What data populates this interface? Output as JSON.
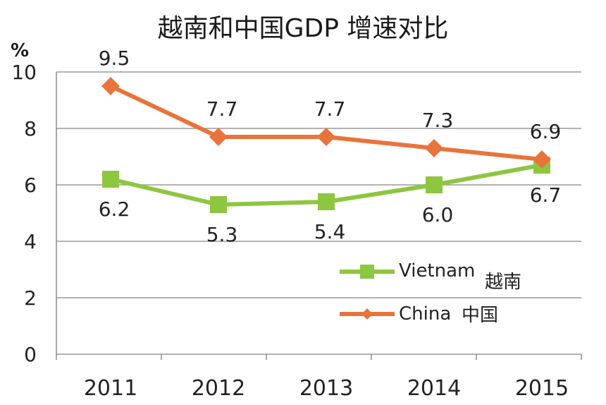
{
  "chart_data": {
    "type": "line",
    "title": "越南和中国GDP 增速对比",
    "ylabel": "%",
    "xlabel": "",
    "categories": [
      "2011",
      "2012",
      "2013",
      "2014",
      "2015"
    ],
    "ylim": [
      0,
      10
    ],
    "yticks": [
      "0",
      "2",
      "4",
      "6",
      "8",
      "10"
    ],
    "grid": true,
    "legend_position": "bottom-right",
    "series": [
      {
        "name": "Vietnam",
        "name_cn": "越南",
        "values": [
          6.2,
          5.3,
          5.4,
          6.0,
          6.7
        ],
        "labels": [
          "6.2",
          "5.3",
          "5.4",
          "6.0",
          "6.7"
        ],
        "color": "#8dc63f",
        "marker": "square"
      },
      {
        "name": "China",
        "name_cn": "中国",
        "values": [
          9.5,
          7.7,
          7.7,
          7.3,
          6.9
        ],
        "labels": [
          "9.5",
          "7.7",
          "7.7",
          "7.3",
          "6.9"
        ],
        "color": "#e8743b",
        "marker": "diamond"
      }
    ]
  }
}
